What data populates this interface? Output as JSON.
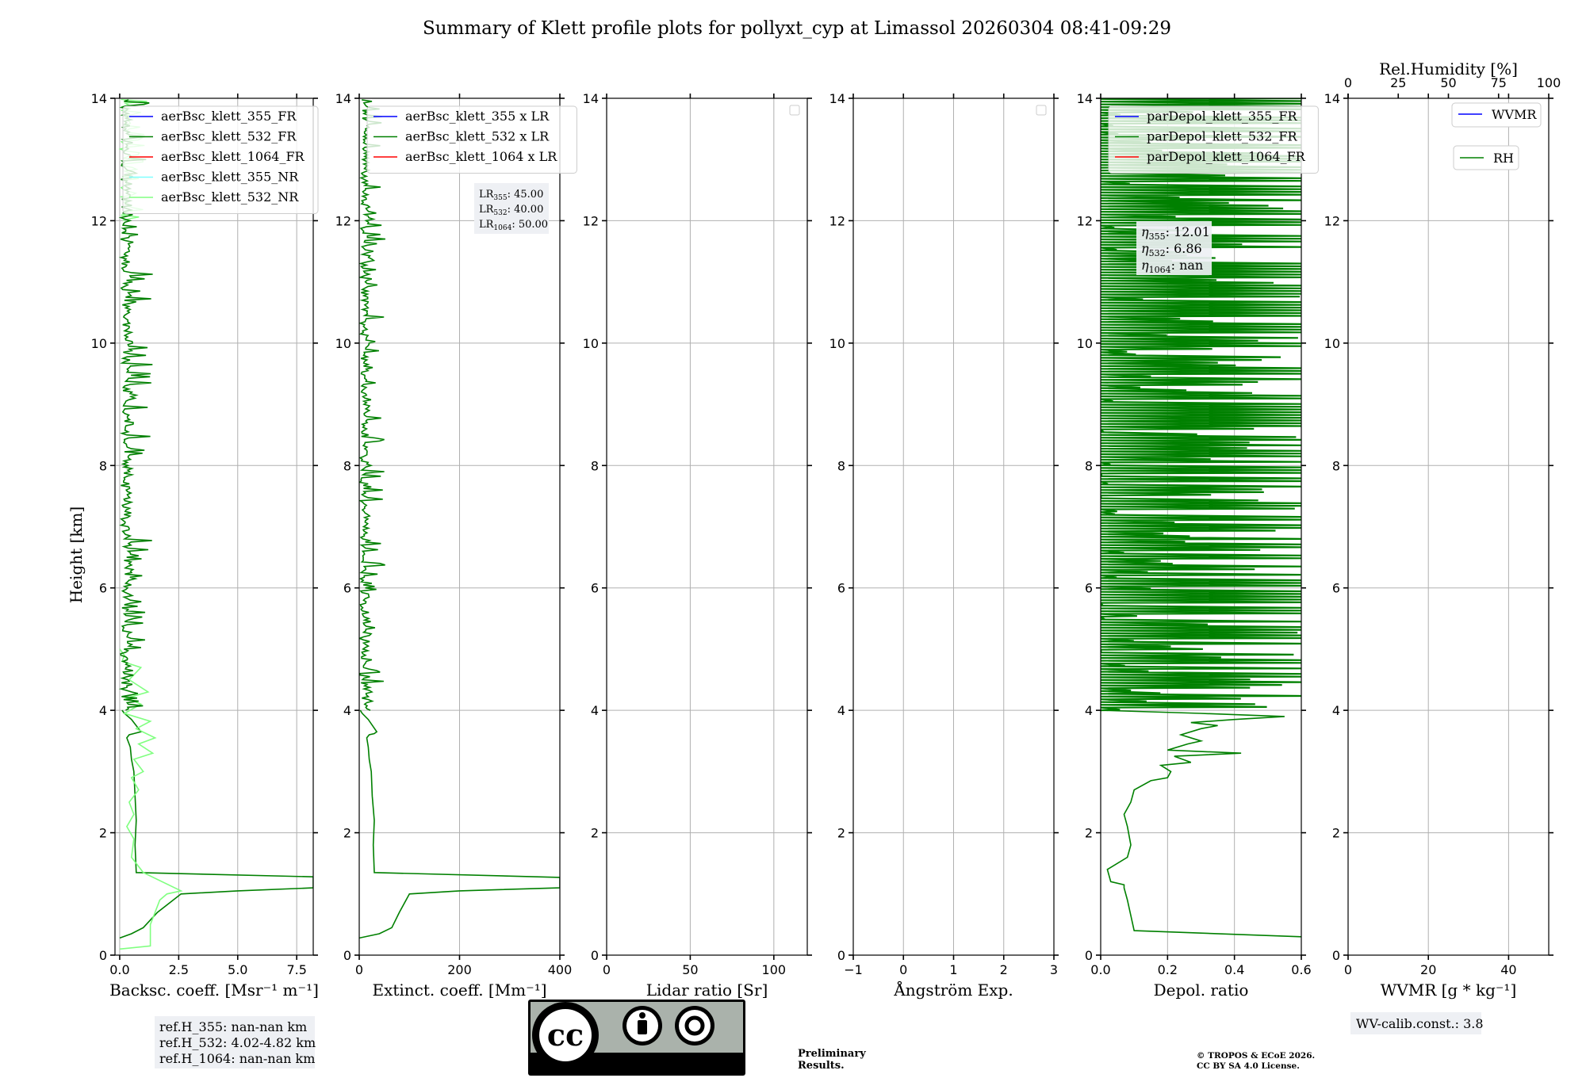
{
  "figure": {
    "title": "Summary of Klett profile plots for pollyxt_cyp at Limassol 20260304 08:41-09:29",
    "ylabel": "Height [km]",
    "height_range": [
      0,
      14
    ],
    "height_ticks": [
      0,
      2,
      4,
      6,
      8,
      10,
      12,
      14
    ],
    "colors": {
      "ch355": "#0000ff",
      "ch532": "#008000",
      "ch1064": "#ff0000",
      "nr355": "#80ffff",
      "nr532": "#80ff80",
      "grid": "#b0b0b0",
      "infobox": "#eef0f4",
      "preliminary": "#e83030"
    }
  },
  "chart_data": [
    {
      "id": "backscatter",
      "type": "line",
      "xlabel": "Backsc. coeff. [Msr⁻¹ m⁻¹]",
      "xlim": [
        -0.2,
        8.2
      ],
      "xticks": [
        0.0,
        2.5,
        5.0,
        7.5
      ],
      "xtick_labels": [
        "0.0",
        "2.5",
        "5.0",
        "7.5"
      ],
      "legend": [
        "aerBsc_klett_355_FR",
        "aerBsc_klett_532_FR",
        "aerBsc_klett_1064_FR",
        "aerBsc_klett_355_NR",
        "aerBsc_klett_532_NR"
      ],
      "legend_colors": [
        "ch355",
        "ch532",
        "ch1064",
        "nr355",
        "nr532"
      ],
      "series": [
        {
          "name": "aerBsc_klett_532_FR",
          "color": "ch532",
          "x": [
            0.0,
            0.5,
            1.0,
            1.6,
            2.6,
            5.0,
            8.2,
            8.2,
            0.7,
            0.65,
            0.7,
            0.65,
            0.6,
            0.5,
            0.45,
            0.3,
            0.4,
            0.6,
            0.9,
            0.5,
            0.2,
            0.1
          ],
          "y": [
            0.28,
            0.35,
            0.45,
            0.7,
            1.0,
            1.05,
            1.1,
            1.28,
            1.35,
            1.8,
            2.2,
            2.6,
            3.0,
            3.2,
            3.4,
            3.55,
            3.6,
            3.62,
            3.65,
            3.85,
            3.95,
            4.0
          ]
        },
        {
          "name": "aerBsc_klett_532_NR",
          "color": "nr532",
          "x": [
            0.0,
            1.3,
            1.3,
            1.7,
            2.0,
            2.6,
            1.0,
            0.5,
            0.6,
            0.3,
            0.6,
            0.4,
            0.8,
            0.5,
            1.0,
            0.6,
            1.4,
            0.8,
            1.5,
            0.7,
            1.3,
            0.2,
            0.9,
            0.3,
            1.2,
            0.4,
            0.9,
            0.1,
            0.2,
            0.0
          ],
          "y": [
            0.1,
            0.15,
            0.5,
            0.9,
            1.0,
            1.05,
            1.35,
            1.6,
            1.9,
            2.1,
            2.3,
            2.5,
            2.7,
            2.9,
            3.0,
            3.2,
            3.3,
            3.45,
            3.55,
            3.7,
            3.82,
            3.95,
            4.1,
            4.2,
            4.3,
            4.5,
            4.7,
            4.8,
            4.9,
            5.0
          ]
        }
      ],
      "noisy_upper": {
        "series": "aerBsc_klett_532_FR",
        "y_from": 4.0,
        "y_to": 14.0,
        "x_range": [
          0.0,
          1.5
        ]
      },
      "noisy_nr": {
        "series": "aerBsc_klett_532_NR",
        "y_from": 12.0,
        "y_to": 14.0,
        "x_range": [
          0.0,
          1.2
        ]
      },
      "info_box": [
        "ref.H_355: nan-nan km",
        "ref.H_532: 4.02-4.82 km",
        "ref.H_1064: nan-nan km"
      ]
    },
    {
      "id": "extinction",
      "type": "line",
      "xlabel": "Extinct. coeff. [Mm⁻¹]",
      "xlim": [
        0,
        400
      ],
      "xticks": [
        0,
        200,
        400
      ],
      "xtick_labels": [
        "0",
        "200",
        "400"
      ],
      "legend": [
        "aerBsc_klett_355 x LR",
        "aerBsc_klett_532 x LR",
        "aerBsc_klett_1064 x LR"
      ],
      "legend_colors": [
        "ch355",
        "ch532",
        "ch1064"
      ],
      "series": [
        {
          "name": "aerBsc_klett_532 x LR",
          "color": "ch532",
          "x": [
            0,
            40,
            65,
            80,
            100,
            200,
            400,
            400,
            30,
            28,
            30,
            26,
            24,
            20,
            18,
            15,
            20,
            30,
            35,
            18,
            6,
            2
          ],
          "y": [
            0.28,
            0.35,
            0.45,
            0.7,
            1.0,
            1.05,
            1.1,
            1.27,
            1.35,
            1.8,
            2.2,
            2.6,
            3.0,
            3.2,
            3.4,
            3.55,
            3.6,
            3.62,
            3.65,
            3.85,
            3.95,
            4.0
          ]
        }
      ],
      "noisy_upper": {
        "series": "aerBsc_klett_532 x LR",
        "y_from": 4.0,
        "y_to": 14.0,
        "x_range": [
          0,
          55
        ]
      },
      "lr_box": [
        {
          "sub": "355",
          "value": ": 45.00"
        },
        {
          "sub": "532",
          "value": ": 40.00"
        },
        {
          "sub": "1064",
          "value": ": 50.00"
        }
      ],
      "lr_prefix": "LR"
    },
    {
      "id": "lidar_ratio",
      "type": "line",
      "xlabel": "Lidar ratio [Sr]",
      "xlim": [
        0,
        120
      ],
      "xticks": [
        0,
        50,
        100
      ],
      "xtick_labels": [
        "0",
        "50",
        "100"
      ],
      "series": []
    },
    {
      "id": "angstrom",
      "type": "line",
      "xlabel": "Ångström Exp.",
      "xlim": [
        -1,
        3
      ],
      "xticks": [
        -1,
        0,
        1,
        2,
        3
      ],
      "xtick_labels": [
        "−1",
        "0",
        "1",
        "2",
        "3"
      ],
      "series": []
    },
    {
      "id": "depol",
      "type": "line",
      "xlabel": "Depol. ratio",
      "xlim": [
        0.0,
        0.6
      ],
      "xticks": [
        0.0,
        0.2,
        0.4,
        0.6
      ],
      "xtick_labels": [
        "0.0",
        "0.2",
        "0.4",
        "0.6"
      ],
      "legend": [
        "parDepol_klett_355_FR",
        "parDepol_klett_532_FR",
        "parDepol_klett_1064_FR"
      ],
      "legend_colors": [
        "ch355",
        "ch532",
        "ch1064"
      ],
      "series": [
        {
          "name": "parDepol_klett_532_FR",
          "color": "ch532",
          "x": [
            0.6,
            0.1,
            0.08,
            0.07,
            0.07,
            0.03,
            0.02,
            0.08,
            0.09,
            0.08,
            0.07,
            0.09,
            0.1,
            0.15,
            0.2,
            0.21,
            0.18,
            0.27,
            0.22,
            0.42,
            0.2,
            0.26,
            0.3,
            0.24,
            0.3,
            0.35,
            0.27,
            0.4,
            0.55,
            0.3,
            0.0
          ],
          "y": [
            0.3,
            0.4,
            0.9,
            1.1,
            1.15,
            1.2,
            1.4,
            1.6,
            1.8,
            2.1,
            2.3,
            2.5,
            2.7,
            2.85,
            2.9,
            3.0,
            3.1,
            3.15,
            3.25,
            3.3,
            3.35,
            3.45,
            3.5,
            3.6,
            3.7,
            3.75,
            3.8,
            3.85,
            3.9,
            3.95,
            4.0
          ]
        }
      ],
      "clipped_upper": {
        "series": "parDepol_klett_532_FR",
        "y_from": 4.0,
        "y_to": 14.0
      },
      "eta_box": [
        {
          "sub": "355",
          "value": ": 12.01"
        },
        {
          "sub": "532",
          "value": ": 6.86"
        },
        {
          "sub": "1064",
          "value": ": nan"
        }
      ],
      "eta_prefix": "η"
    },
    {
      "id": "wvmr",
      "type": "line",
      "xlabel": "WVMR [g * kg⁻¹]",
      "xlim": [
        0,
        50
      ],
      "xticks": [
        0,
        20,
        40
      ],
      "xtick_labels": [
        "0",
        "20",
        "40"
      ],
      "top_xlabel": "Rel.Humidity [%]",
      "top_xlim": [
        0,
        100
      ],
      "top_xticks": [
        0,
        25,
        50,
        75,
        100
      ],
      "top_xtick_labels": [
        "0",
        "25",
        "50",
        "75",
        "100"
      ],
      "legend_wvmr": "WVMR",
      "legend_rh": "RH",
      "series": [],
      "info_box": [
        "WV-calib.const.: 3.8"
      ]
    }
  ],
  "footer": {
    "license_badge": {
      "by": "BY",
      "sa": "SA",
      "cc": "cc"
    },
    "preliminary": [
      "Preliminary",
      "Results."
    ],
    "copyright": [
      "© TROPOS & ECoE 2026.",
      "CC BY SA 4.0 License."
    ]
  }
}
